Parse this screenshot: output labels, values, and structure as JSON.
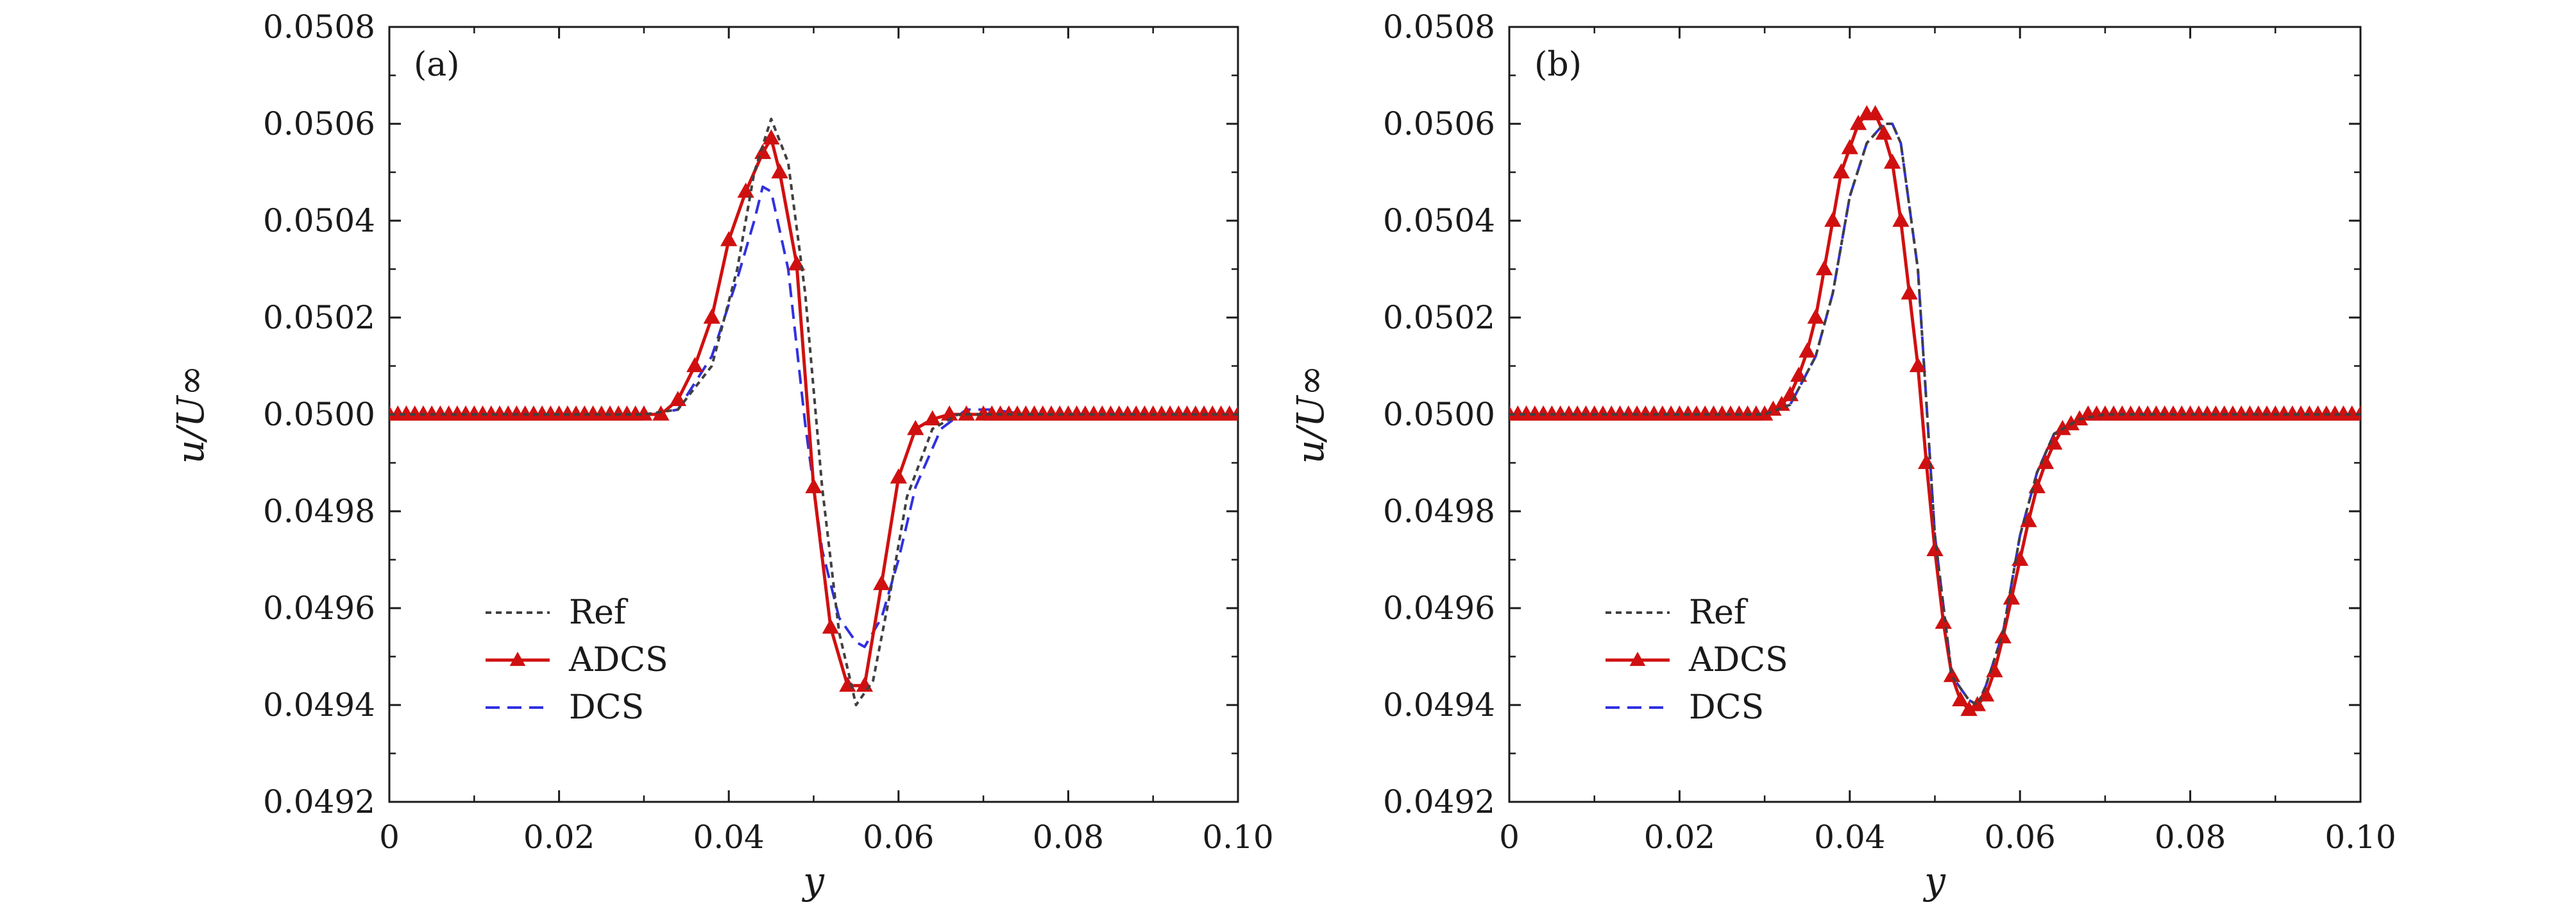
{
  "chart_data": [
    {
      "type": "line",
      "panel_label": "(a)",
      "xlabel": "y",
      "ylabel": "u/U∞",
      "xlim": [
        0,
        0.1
      ],
      "ylim": [
        0.0492,
        0.0508
      ],
      "xticks": [
        "0",
        "0.02",
        "0.04",
        "0.06",
        "0.08",
        "0.10"
      ],
      "yticks": [
        "0.0492",
        "0.0494",
        "0.0496",
        "0.0498",
        "0.0500",
        "0.0502",
        "0.0504",
        "0.0506",
        "0.0508"
      ],
      "legend": {
        "placement": "lower-left"
      },
      "series": [
        {
          "name": "Ref",
          "color": "#404040",
          "style": "dotted",
          "x": [
            0,
            0.03,
            0.034,
            0.038,
            0.041,
            0.043,
            0.045,
            0.047,
            0.049,
            0.051,
            0.053,
            0.055,
            0.057,
            0.059,
            0.061,
            0.064,
            0.067,
            0.07,
            0.1
          ],
          "y": [
            0.05,
            0.05,
            0.05001,
            0.0501,
            0.0503,
            0.0505,
            0.05061,
            0.05052,
            0.05025,
            0.04985,
            0.04955,
            0.0494,
            0.04945,
            0.04963,
            0.04983,
            0.04997,
            0.05,
            0.05,
            0.05
          ]
        },
        {
          "name": "ADCS",
          "color": "#d01010",
          "style": "solid",
          "marker": "triangle",
          "x": [
            0,
            0.001,
            0.002,
            0.003,
            0.004,
            0.005,
            0.006,
            0.007,
            0.008,
            0.009,
            0.01,
            0.011,
            0.012,
            0.013,
            0.014,
            0.015,
            0.016,
            0.017,
            0.018,
            0.019,
            0.02,
            0.021,
            0.022,
            0.023,
            0.024,
            0.025,
            0.026,
            0.027,
            0.028,
            0.029,
            0.03,
            0.032,
            0.034,
            0.036,
            0.038,
            0.04,
            0.042,
            0.044,
            0.045,
            0.046,
            0.048,
            0.05,
            0.052,
            0.054,
            0.056,
            0.058,
            0.06,
            0.062,
            0.064,
            0.066,
            0.068,
            0.07,
            0.071,
            0.072,
            0.073,
            0.074,
            0.075,
            0.076,
            0.077,
            0.078,
            0.079,
            0.08,
            0.081,
            0.082,
            0.083,
            0.084,
            0.085,
            0.086,
            0.087,
            0.088,
            0.089,
            0.09,
            0.091,
            0.092,
            0.093,
            0.094,
            0.095,
            0.096,
            0.097,
            0.098,
            0.099,
            0.1
          ],
          "y": [
            0.05,
            0.05,
            0.05,
            0.05,
            0.05,
            0.05,
            0.05,
            0.05,
            0.05,
            0.05,
            0.05,
            0.05,
            0.05,
            0.05,
            0.05,
            0.05,
            0.05,
            0.05,
            0.05,
            0.05,
            0.05,
            0.05,
            0.05,
            0.05,
            0.05,
            0.05,
            0.05,
            0.05,
            0.05,
            0.05,
            0.05,
            0.05,
            0.05003,
            0.0501,
            0.0502,
            0.05036,
            0.05046,
            0.05054,
            0.05057,
            0.0505,
            0.05031,
            0.04985,
            0.04956,
            0.04944,
            0.04944,
            0.04965,
            0.04987,
            0.04997,
            0.04999,
            0.05,
            0.05,
            0.05,
            0.05,
            0.05,
            0.05,
            0.05,
            0.05,
            0.05,
            0.05,
            0.05,
            0.05,
            0.05,
            0.05,
            0.05,
            0.05,
            0.05,
            0.05,
            0.05,
            0.05,
            0.05,
            0.05,
            0.05,
            0.05,
            0.05,
            0.05,
            0.05,
            0.05,
            0.05,
            0.05,
            0.05,
            0.05,
            0.05
          ]
        },
        {
          "name": "DCS",
          "color": "#3030e0",
          "style": "dashed",
          "x": [
            0,
            0.031,
            0.034,
            0.038,
            0.041,
            0.043,
            0.044,
            0.045,
            0.047,
            0.049,
            0.051,
            0.053,
            0.055,
            0.056,
            0.058,
            0.06,
            0.062,
            0.065,
            0.068,
            0.071,
            0.075,
            0.1
          ],
          "y": [
            0.05,
            0.05,
            0.05001,
            0.05012,
            0.05028,
            0.0504,
            0.05047,
            0.05046,
            0.0503,
            0.04998,
            0.04972,
            0.04958,
            0.04953,
            0.04952,
            0.04958,
            0.0497,
            0.04985,
            0.04997,
            0.05001,
            0.05001,
            0.05,
            0.05
          ]
        }
      ]
    },
    {
      "type": "line",
      "panel_label": "(b)",
      "xlabel": "y",
      "ylabel": "u/U∞",
      "xlim": [
        0,
        0.1
      ],
      "ylim": [
        0.0492,
        0.0508
      ],
      "xticks": [
        "0",
        "0.02",
        "0.04",
        "0.06",
        "0.08",
        "0.10"
      ],
      "yticks": [
        "0.0492",
        "0.0494",
        "0.0496",
        "0.0498",
        "0.0500",
        "0.0502",
        "0.0504",
        "0.0506",
        "0.0508"
      ],
      "legend": {
        "placement": "lower-left"
      },
      "series": [
        {
          "name": "Ref",
          "color": "#404040",
          "style": "dotted",
          "x": [
            0,
            0.03,
            0.033,
            0.036,
            0.038,
            0.04,
            0.042,
            0.044,
            0.045,
            0.046,
            0.048,
            0.05,
            0.052,
            0.054,
            0.055,
            0.056,
            0.058,
            0.06,
            0.062,
            0.064,
            0.067,
            0.07,
            0.1
          ],
          "y": [
            0.05,
            0.05,
            0.05002,
            0.05012,
            0.05025,
            0.05045,
            0.05056,
            0.0506,
            0.0506,
            0.05056,
            0.0503,
            0.04975,
            0.04946,
            0.04941,
            0.0494,
            0.04944,
            0.04955,
            0.04975,
            0.04988,
            0.04996,
            0.04999,
            0.05,
            0.05
          ]
        },
        {
          "name": "ADCS",
          "color": "#d01010",
          "style": "solid",
          "marker": "triangle",
          "x": [
            0,
            0.001,
            0.002,
            0.003,
            0.004,
            0.005,
            0.006,
            0.007,
            0.008,
            0.009,
            0.01,
            0.011,
            0.012,
            0.013,
            0.014,
            0.015,
            0.016,
            0.017,
            0.018,
            0.019,
            0.02,
            0.021,
            0.022,
            0.023,
            0.024,
            0.025,
            0.026,
            0.027,
            0.028,
            0.029,
            0.03,
            0.031,
            0.032,
            0.033,
            0.034,
            0.035,
            0.036,
            0.037,
            0.038,
            0.039,
            0.04,
            0.041,
            0.042,
            0.043,
            0.044,
            0.045,
            0.046,
            0.047,
            0.048,
            0.049,
            0.05,
            0.051,
            0.052,
            0.053,
            0.054,
            0.055,
            0.056,
            0.057,
            0.058,
            0.059,
            0.06,
            0.061,
            0.062,
            0.063,
            0.064,
            0.065,
            0.066,
            0.067,
            0.068,
            0.069,
            0.07,
            0.071,
            0.072,
            0.073,
            0.074,
            0.075,
            0.076,
            0.077,
            0.078,
            0.079,
            0.08,
            0.081,
            0.082,
            0.083,
            0.084,
            0.085,
            0.086,
            0.087,
            0.088,
            0.089,
            0.09,
            0.091,
            0.092,
            0.093,
            0.094,
            0.095,
            0.096,
            0.097,
            0.098,
            0.099,
            0.1
          ],
          "y": [
            0.05,
            0.05,
            0.05,
            0.05,
            0.05,
            0.05,
            0.05,
            0.05,
            0.05,
            0.05,
            0.05,
            0.05,
            0.05,
            0.05,
            0.05,
            0.05,
            0.05,
            0.05,
            0.05,
            0.05,
            0.05,
            0.05,
            0.05,
            0.05,
            0.05,
            0.05,
            0.05,
            0.05,
            0.05,
            0.05,
            0.05,
            0.05001,
            0.05002,
            0.05004,
            0.05008,
            0.05013,
            0.0502,
            0.0503,
            0.0504,
            0.0505,
            0.05055,
            0.0506,
            0.05062,
            0.05062,
            0.05058,
            0.05052,
            0.0504,
            0.05025,
            0.0501,
            0.0499,
            0.04972,
            0.04957,
            0.04946,
            0.04941,
            0.04939,
            0.0494,
            0.04942,
            0.04947,
            0.04954,
            0.04962,
            0.0497,
            0.04978,
            0.04985,
            0.0499,
            0.04994,
            0.04997,
            0.04998,
            0.04999,
            0.05,
            0.05,
            0.05,
            0.05,
            0.05,
            0.05,
            0.05,
            0.05,
            0.05,
            0.05,
            0.05,
            0.05,
            0.05,
            0.05,
            0.05,
            0.05,
            0.05,
            0.05,
            0.05,
            0.05,
            0.05,
            0.05,
            0.05,
            0.05,
            0.05,
            0.05,
            0.05,
            0.05,
            0.05,
            0.05,
            0.05,
            0.05,
            0.05
          ]
        },
        {
          "name": "DCS",
          "color": "#3030e0",
          "style": "dashed",
          "x": [
            0,
            0.03,
            0.033,
            0.036,
            0.038,
            0.04,
            0.042,
            0.044,
            0.045,
            0.046,
            0.048,
            0.05,
            0.052,
            0.054,
            0.055,
            0.056,
            0.058,
            0.06,
            0.062,
            0.064,
            0.067,
            0.07,
            0.1
          ],
          "y": [
            0.05,
            0.05,
            0.05002,
            0.05012,
            0.05025,
            0.05045,
            0.05056,
            0.0506,
            0.0506,
            0.05056,
            0.0503,
            0.04975,
            0.04946,
            0.04941,
            0.0494,
            0.04944,
            0.04955,
            0.04975,
            0.04988,
            0.04996,
            0.04999,
            0.05,
            0.05
          ]
        }
      ]
    }
  ]
}
